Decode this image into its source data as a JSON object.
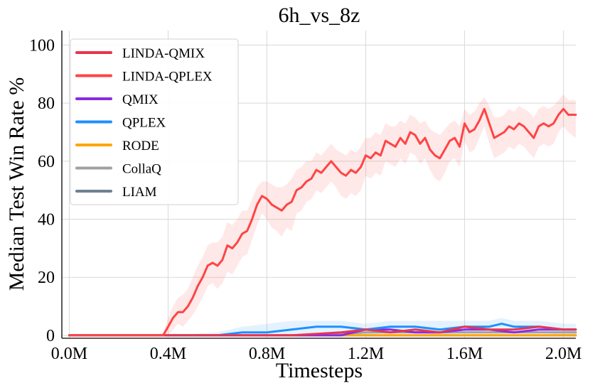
{
  "chart_data": {
    "type": "line",
    "title": "6h_vs_8z",
    "xlabel": "Timesteps",
    "ylabel": "Median Test Win Rate %",
    "xlim": [
      -0.03,
      2.05
    ],
    "ylim": [
      -1,
      105
    ],
    "x_ticks": [
      0,
      0.4,
      0.8,
      1.2,
      1.6,
      2.0
    ],
    "x_tick_labels": [
      "0.0M",
      "0.4M",
      "0.8M",
      "1.2M",
      "1.6M",
      "2.0M"
    ],
    "y_ticks": [
      0,
      20,
      40,
      60,
      80,
      100
    ],
    "y_tick_labels": [
      "0",
      "20",
      "40",
      "60",
      "80",
      "100"
    ],
    "grid": true,
    "legend_position": "top-left",
    "series": [
      {
        "name": "LINDA-QMIX",
        "color": "#e8344e",
        "x": [
          0,
          0.3,
          0.6,
          0.9,
          1.1,
          1.2,
          1.3,
          1.4,
          1.5,
          1.6,
          1.7,
          1.8,
          1.9,
          2.0,
          2.05
        ],
        "values": [
          0,
          0,
          0,
          0,
          1,
          2,
          1,
          2,
          1,
          3,
          2,
          2,
          3,
          2,
          2
        ],
        "band_upper": [],
        "band_lower": []
      },
      {
        "name": "LINDA-QPLEX",
        "color": "#ff4444",
        "x": [
          0,
          0.1,
          0.2,
          0.3,
          0.35,
          0.38,
          0.4,
          0.42,
          0.44,
          0.46,
          0.48,
          0.5,
          0.52,
          0.54,
          0.56,
          0.58,
          0.6,
          0.62,
          0.64,
          0.66,
          0.68,
          0.7,
          0.72,
          0.74,
          0.76,
          0.78,
          0.8,
          0.82,
          0.84,
          0.86,
          0.88,
          0.9,
          0.92,
          0.94,
          0.96,
          0.98,
          1.0,
          1.02,
          1.04,
          1.06,
          1.08,
          1.1,
          1.12,
          1.14,
          1.16,
          1.18,
          1.2,
          1.22,
          1.24,
          1.26,
          1.28,
          1.3,
          1.32,
          1.34,
          1.36,
          1.38,
          1.4,
          1.42,
          1.44,
          1.46,
          1.48,
          1.5,
          1.52,
          1.54,
          1.56,
          1.58,
          1.6,
          1.62,
          1.64,
          1.66,
          1.68,
          1.7,
          1.72,
          1.74,
          1.76,
          1.78,
          1.8,
          1.82,
          1.84,
          1.86,
          1.88,
          1.9,
          1.92,
          1.94,
          1.96,
          1.98,
          2.0,
          2.02,
          2.05
        ],
        "values": [
          0,
          0,
          0,
          0,
          0,
          0,
          3,
          6,
          8,
          8,
          10,
          13,
          17,
          20,
          24,
          25,
          24,
          26,
          31,
          30,
          32,
          35,
          36,
          40,
          45,
          48,
          47,
          45,
          44,
          43,
          45,
          46,
          50,
          51,
          53,
          54,
          57,
          56,
          58,
          60,
          58,
          56,
          55,
          57,
          56,
          58,
          62,
          61,
          63,
          62,
          67,
          66,
          65,
          68,
          66,
          70,
          69,
          66,
          68,
          64,
          62,
          61,
          64,
          67,
          68,
          65,
          73,
          70,
          71,
          74,
          78,
          73,
          68,
          69,
          70,
          72,
          71,
          73,
          72,
          70,
          68,
          72,
          73,
          72,
          73,
          76,
          78,
          76,
          76
        ],
        "band_upper": [
          0,
          0,
          0,
          0,
          0,
          1,
          6,
          10,
          13,
          14,
          16,
          20,
          24,
          27,
          31,
          32,
          32,
          34,
          39,
          38,
          40,
          43,
          43,
          47,
          51,
          53,
          53,
          52,
          51,
          51,
          52,
          54,
          57,
          58,
          60,
          60,
          63,
          62,
          64,
          66,
          64,
          63,
          62,
          64,
          63,
          65,
          68,
          68,
          70,
          69,
          73,
          72,
          72,
          74,
          73,
          76,
          75,
          73,
          74,
          71,
          70,
          69,
          71,
          73,
          74,
          72,
          78,
          76,
          77,
          80,
          82,
          79,
          75,
          75,
          76,
          78,
          77,
          79,
          78,
          77,
          75,
          78,
          79,
          78,
          79,
          81,
          83,
          81,
          81
        ],
        "band_lower": [
          0,
          0,
          0,
          0,
          0,
          0,
          0,
          2,
          4,
          3,
          5,
          7,
          10,
          13,
          17,
          18,
          16,
          18,
          22,
          21,
          24,
          27,
          28,
          33,
          38,
          42,
          40,
          37,
          36,
          34,
          37,
          36,
          42,
          43,
          46,
          47,
          50,
          49,
          51,
          53,
          51,
          48,
          47,
          49,
          48,
          50,
          55,
          54,
          56,
          55,
          60,
          59,
          58,
          61,
          59,
          63,
          62,
          59,
          61,
          57,
          54,
          53,
          56,
          60,
          61,
          58,
          67,
          63,
          64,
          68,
          72,
          66,
          61,
          62,
          63,
          65,
          64,
          66,
          65,
          63,
          61,
          65,
          66,
          65,
          66,
          70,
          72,
          70,
          68
        ]
      },
      {
        "name": "QMIX",
        "color": "#8a2be2",
        "x": [
          0,
          0.5,
          0.8,
          1.0,
          1.1,
          1.2,
          1.3,
          1.4,
          1.5,
          1.6,
          1.7,
          1.8,
          1.9,
          2.0,
          2.05
        ],
        "values": [
          0,
          0,
          0,
          0,
          0,
          2,
          2,
          1,
          1,
          2,
          2,
          1,
          2,
          2,
          2
        ],
        "band_upper": [],
        "band_lower": []
      },
      {
        "name": "QPLEX",
        "color": "#1e90ff",
        "x": [
          0,
          0.4,
          0.6,
          0.7,
          0.8,
          0.9,
          1.0,
          1.1,
          1.2,
          1.3,
          1.4,
          1.5,
          1.6,
          1.7,
          1.75,
          1.8,
          1.9,
          2.0,
          2.05
        ],
        "values": [
          0,
          0,
          0,
          1,
          1,
          2,
          3,
          3,
          2,
          3,
          3,
          2,
          3,
          3,
          4,
          3,
          3,
          2,
          2
        ],
        "band_upper": [
          0,
          0,
          1,
          3,
          4,
          5,
          5,
          5,
          4,
          5,
          5,
          5,
          5,
          5,
          6,
          5,
          5,
          4,
          4
        ],
        "band_lower": [
          0,
          0,
          0,
          0,
          0,
          0,
          1,
          1,
          0,
          1,
          1,
          0,
          1,
          1,
          2,
          1,
          1,
          0,
          0
        ]
      },
      {
        "name": "RODE",
        "color": "#ffa500",
        "x": [
          0,
          0.8,
          1.0,
          1.2,
          1.4,
          1.6,
          1.8,
          2.0,
          2.05
        ],
        "values": [
          0,
          0,
          0,
          0,
          0,
          0,
          0,
          0,
          0
        ],
        "band_upper": [],
        "band_lower": []
      },
      {
        "name": "CollaQ",
        "color": "#a0a0a0",
        "x": [
          0,
          0.8,
          1.0,
          1.2,
          1.4,
          1.6,
          1.8,
          2.0,
          2.05
        ],
        "values": [
          0,
          0,
          0,
          1,
          1,
          1,
          1,
          1,
          1
        ],
        "band_upper": [],
        "band_lower": []
      },
      {
        "name": "LIAM",
        "color": "#708090",
        "x": [
          0,
          0.8,
          1.0,
          1.2,
          1.4,
          1.6,
          1.8,
          2.0,
          2.05
        ],
        "values": [
          0,
          0,
          0,
          0,
          0,
          0,
          0,
          0,
          0
        ],
        "band_upper": [],
        "band_lower": []
      }
    ]
  }
}
